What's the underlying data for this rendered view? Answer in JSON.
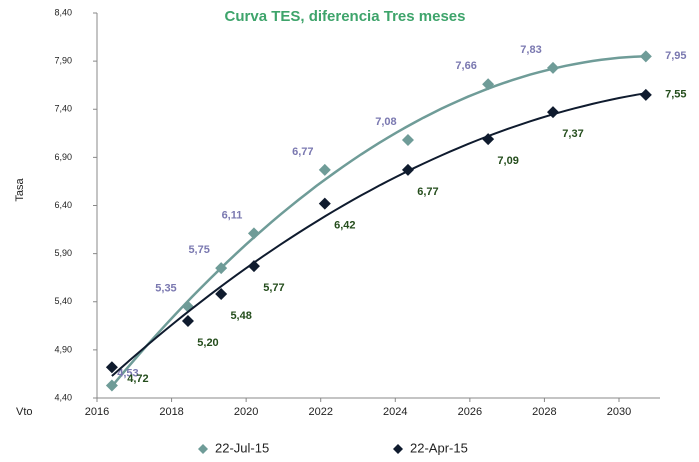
{
  "chart_data": {
    "type": "scatter",
    "title": "Curva TES, diferencia Tres meses",
    "y_label": "Tasa",
    "x_label": "Vto",
    "xlim": [
      2016,
      2030
    ],
    "xticks": [
      2016,
      2018,
      2020,
      2022,
      2024,
      2026,
      2028,
      2030
    ],
    "ylim": [
      4.4,
      8.4
    ],
    "yticks": [
      {
        "value": 4.4,
        "label": "4,40"
      },
      {
        "value": 4.9,
        "label": "4,90"
      },
      {
        "value": 5.4,
        "label": "5,40"
      },
      {
        "value": 5.9,
        "label": "5,90"
      },
      {
        "value": 6.4,
        "label": "6,40"
      },
      {
        "value": 6.9,
        "label": "6,90"
      },
      {
        "value": 7.4,
        "label": "7,40"
      },
      {
        "value": 7.9,
        "label": "7,90"
      },
      {
        "value": 8.4,
        "label": "8,40"
      }
    ],
    "grid": false,
    "trendline": "polynomial",
    "legend": "bottom",
    "series": [
      {
        "name": "22-Jul-15",
        "color": "#6f9c98",
        "label_color": "#7a78b0",
        "x": [
          2016.4,
          2018.44,
          2019.33,
          2020.21,
          2022.11,
          2024.34,
          2026.49,
          2028.23,
          2030.72
        ],
        "values": [
          4.53,
          5.35,
          5.75,
          6.11,
          6.77,
          7.08,
          7.66,
          7.83,
          7.95
        ],
        "value_labels": [
          "4,53",
          "5,35",
          "5,75",
          "6,11",
          "6,77",
          "7,08",
          "7,66",
          "7,83",
          "7,95"
        ]
      },
      {
        "name": "22-Apr-15",
        "color": "#0f1b2e",
        "label_color": "#244d1c",
        "x": [
          2016.4,
          2018.44,
          2019.33,
          2020.21,
          2022.11,
          2024.34,
          2026.49,
          2028.23,
          2030.72
        ],
        "values": [
          4.72,
          5.2,
          5.48,
          5.77,
          6.42,
          6.77,
          7.09,
          7.37,
          7.55
        ],
        "value_labels": [
          "4,72",
          "5,20",
          "5,48",
          "5,77",
          "6,42",
          "6,77",
          "7,09",
          "7,37",
          "7,55"
        ]
      }
    ]
  }
}
